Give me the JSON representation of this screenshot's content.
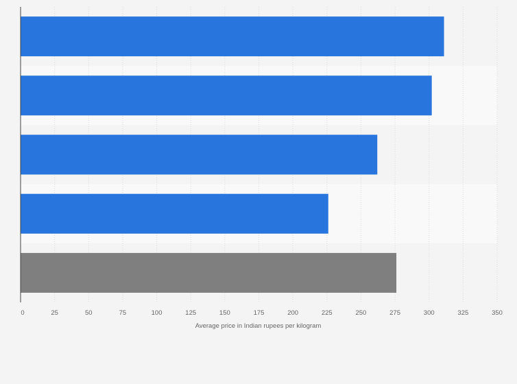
{
  "chart_data": {
    "type": "bar",
    "orientation": "horizontal",
    "title": "",
    "xlabel": "Average price in Indian rupees per kilogram",
    "ylabel": "",
    "categories": [
      "",
      "",
      "",
      "",
      ""
    ],
    "values": [
      311,
      302,
      262,
      226,
      276
    ],
    "xlim": [
      0,
      350
    ],
    "xticks": [
      0,
      25,
      50,
      75,
      100,
      125,
      150,
      175,
      200,
      225,
      250,
      275,
      300,
      325,
      350
    ],
    "grid": true,
    "legend": "none",
    "colors": [
      "#2876dd",
      "#2876dd",
      "#2876dd",
      "#2876dd",
      "#7f7f7f"
    ]
  }
}
